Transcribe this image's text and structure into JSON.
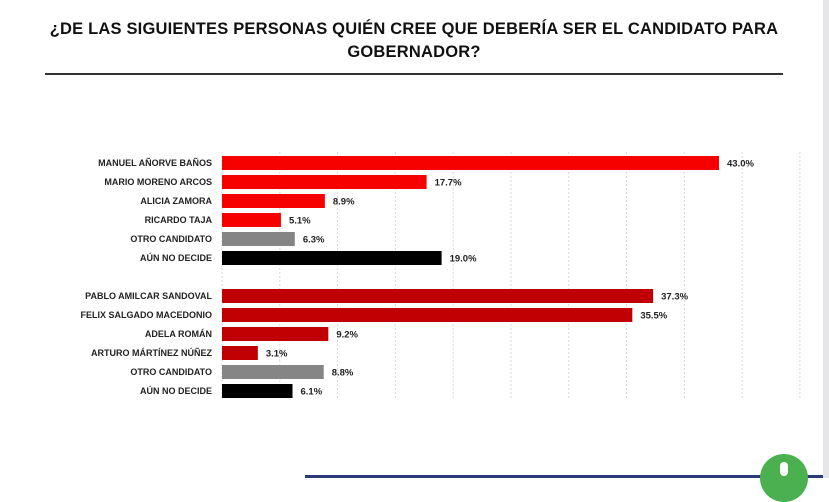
{
  "chart_data": {
    "type": "bar",
    "orientation": "horizontal",
    "title": "¿DE LAS SIGUIENTES PERSONAS QUIÉN CREE QUE DEBERÍA SER EL CANDIDATO PARA GOBERNADOR?",
    "xlim": [
      0,
      50
    ],
    "grid": true,
    "groups": [
      {
        "categories": [
          "MANUEL AÑORVE BAÑOS",
          "MARIO MORENO ARCOS",
          "ALICIA ZAMORA",
          "RICARDO TAJA",
          "OTRO CANDIDATO",
          "AÚN NO DECIDE"
        ],
        "values": [
          43.0,
          17.7,
          8.9,
          5.1,
          6.3,
          19.0
        ],
        "labels": [
          "43.0%",
          "17.7%",
          "8.9%",
          "5.1%",
          "6.3%",
          "19.0%"
        ],
        "colors": [
          "#f70000",
          "#f70000",
          "#f70000",
          "#f70000",
          "#858585",
          "#000000"
        ]
      },
      {
        "categories": [
          "PABLO AMILCAR SANDOVAL",
          "FELIX SALGADO MACEDONIO",
          "ADELA ROMÁN",
          "ARTURO MÁRTÍNEZ NÚÑEZ",
          "OTRO CANDIDATO",
          "AÚN NO DECIDE"
        ],
        "values": [
          37.3,
          35.5,
          9.2,
          3.1,
          8.8,
          6.1
        ],
        "labels": [
          "37.3%",
          "35.5%",
          "9.2%",
          "3.1%",
          "8.8%",
          "6.1%"
        ],
        "colors": [
          "#c00000",
          "#c00000",
          "#c00000",
          "#c00000",
          "#858585",
          "#000000"
        ]
      }
    ]
  }
}
